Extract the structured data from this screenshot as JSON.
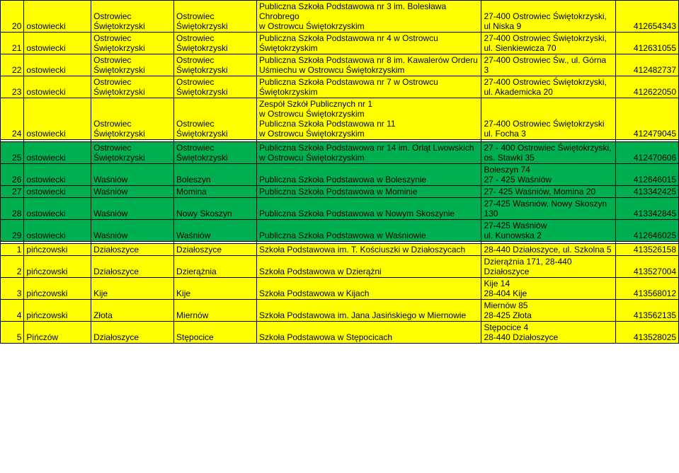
{
  "colors": {
    "yellow": "#ffff00",
    "green": "#00b050",
    "white": "#ffffff"
  },
  "columnWidths": [
    "30px",
    "85px",
    "105px",
    "105px",
    "285px",
    "170px",
    "80px"
  ],
  "rows": [
    {
      "bg": "yellow",
      "cells": [
        "20",
        "ostowiecki",
        "Ostrowiec Świętokrzyski",
        "Ostrowiec Świętokrzyski",
        "Publiczna Szkoła Podstawowa nr 3 im. Bolesława Chrobrego\nw Ostrowcu Świętokrzyskim",
        "27-400 Ostrowiec Świętokrzyski, ul Niska 9",
        "412654343"
      ]
    },
    {
      "bg": "yellow",
      "cells": [
        "21",
        "ostowiecki",
        "Ostrowiec Świętokrzyski",
        "Ostrowiec Świętokrzyski",
        "Publiczna Szkoła Podstawowa nr 4 w Ostrowcu Świętokrzyskim",
        "27-400 Ostrowiec Świętokrzyski, ul. Sienkiewicza 70",
        "412631055"
      ]
    },
    {
      "bg": "yellow",
      "cells": [
        "22",
        "ostowiecki",
        "Ostrowiec Świętokrzyski",
        "Ostrowiec Świętokrzyski",
        "Publiczna Szkoła Podstawowa nr 8 im. Kawalerów Orderu Uśmiechu w Ostrowcu Świętokrzyskim",
        "27-400 Ostrowiec Św., ul. Górna 3",
        "412482737"
      ]
    },
    {
      "bg": "yellow",
      "cells": [
        "23",
        "ostowiecki",
        "Ostrowiec Świętokrzyski",
        "Ostrowiec Świętokrzyski",
        "Publiczna Szkoła Podstawowa nr 7 w Ostrowcu Świętokrzyskim",
        "27-400 Ostrowiec Świętokrzyski, ul. Akademicka 20",
        "412622050"
      ]
    },
    {
      "bg": "yellow",
      "cells": [
        "24",
        "ostowiecki",
        "Ostrowiec Świętokrzyski",
        "Ostrowiec Świętokrzyski",
        "Zespół Szkół Publicznych nr 1\nw Ostrowcu Świętokrzyskim\nPubliczna Szkoła Podstawowa nr 11\nw Ostrowcu Świętokrzyskim",
        "27-400 Ostrowiec Świętokrzyski\nul. Focha 3",
        "412479045"
      ]
    },
    {
      "bg": "white",
      "cells": [
        "",
        "",
        "",
        "",
        "",
        "",
        ""
      ]
    },
    {
      "bg": "green",
      "cells": [
        "25",
        "ostowiecki",
        "Ostrowiec Świętokrzyski",
        "Ostrowiec Świętokrzyski",
        "Publiczna Szkoła Podstawowa nr 14 im. Orląt Lwowskich w Ostrowcu Świętokrzyskim",
        "27 - 400 Ostrowiec Świętokrzyski, os. Stawki 35",
        "412470606"
      ]
    },
    {
      "bg": "green",
      "cells": [
        "26",
        "ostowiecki",
        "Waśniów",
        "Boleszyn",
        "Publiczna Szkoła Podstawowa w Boleszynie",
        "Boleszyn 74\n27 - 425 Waśniów",
        "412646015"
      ]
    },
    {
      "bg": "green",
      "cells": [
        "27",
        "ostowiecki",
        "Waśniów",
        "Momina",
        "Publiczna Szkoła Podstawowa w Mominie",
        "27- 425 Waśniów, Momina 20",
        "413342425"
      ]
    },
    {
      "bg": "green",
      "cells": [
        "28",
        "ostowiecki",
        "Waśniów",
        "Nowy Skoszyn",
        "Publiczna Szkoła Podstawowa w Nowym Skoszynie",
        "27-425 Waśniów, Nowy Skoszyn 130",
        "413342845"
      ]
    },
    {
      "bg": "green",
      "cells": [
        "29",
        "ostowiecki",
        "Waśniów",
        "Waśniów",
        "Publiczna Szkoła Podstawowa w Waśniowie",
        "27-425 Waśniów\nul. Kunowska 2",
        "412646025"
      ]
    },
    {
      "bg": "white",
      "cells": [
        "",
        "",
        "",
        "",
        "",
        "",
        ""
      ]
    },
    {
      "bg": "yellow",
      "cells": [
        "1",
        "pińczowski",
        "Działoszyce",
        "Działoszyce",
        "Szkoła Podstawowa im. T. Kościuszki w Działoszycach",
        "28-440 Działoszyce, ul. Szkolna 5",
        "413526158"
      ]
    },
    {
      "bg": "yellow",
      "cells": [
        "2",
        "pińczowski",
        "Działoszyce",
        "Dzierążnia",
        "Szkoła Podstawowa w Dzierążni",
        "Dzierążnia 171, 28-440 Działoszyce",
        "413527004"
      ]
    },
    {
      "bg": "yellow",
      "cells": [
        "3",
        "pińczowski",
        "Kije",
        "Kije",
        "Szkoła Podstawowa w Kijach",
        "Kije 14\n28-404 Kije",
        "413568012"
      ]
    },
    {
      "bg": "yellow",
      "cells": [
        "4",
        "pińczowski",
        "Złota",
        "Miernów",
        "Szkoła Podstawowa im. Jana Jasińskiego w Miernowie",
        "Miernów 85\n28-425 Złota",
        "413562135"
      ]
    },
    {
      "bg": "yellow",
      "cells": [
        "5",
        "Pińczów",
        "Działoszyce",
        "Stępocice",
        "Szkoła Podstawowa w Stępocicach",
        "Stępocice 4\n28-440 Działoszyce",
        "413528025"
      ]
    }
  ]
}
